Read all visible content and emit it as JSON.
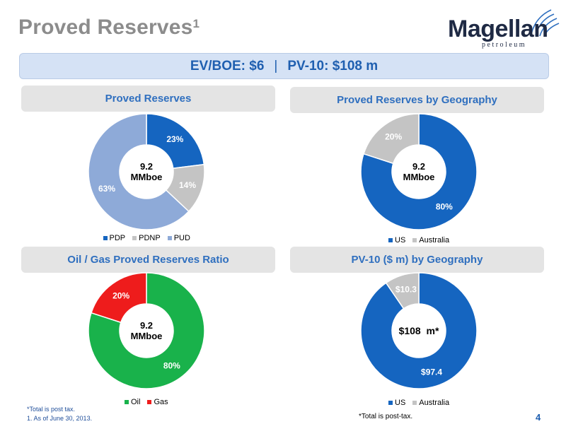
{
  "header": {
    "title": "Proved Reserves",
    "title_sup": "1"
  },
  "logo": {
    "word": "Magellan",
    "sub": "petroleum"
  },
  "banner": {
    "left": "EV/BOE: $6",
    "separator": "|",
    "right": "PV-10: $108 m"
  },
  "panels": {
    "p1": "Proved Reserves",
    "p2": "Proved Reserves by Geography",
    "p3": "Oil / Gas Proved Reserves Ratio",
    "p4": "PV-10 ($ m) by Geography"
  },
  "chart_data": [
    {
      "type": "pie",
      "title": "Proved Reserves",
      "center_label": [
        "9.2",
        "MMboe"
      ],
      "categories": [
        "PDP",
        "PDNP",
        "PUD"
      ],
      "values": [
        23,
        14,
        63
      ],
      "labels": [
        "23%",
        "14%",
        "63%"
      ],
      "colors": [
        "#1565c0",
        "#c4c4c4",
        "#8eaad8"
      ],
      "legend": "bottom"
    },
    {
      "type": "pie",
      "title": "Proved Reserves by Geography",
      "center_label": [
        "9.2",
        "MMboe"
      ],
      "categories": [
        "US",
        "Australia"
      ],
      "values": [
        80,
        20
      ],
      "labels": [
        "80%",
        "20%"
      ],
      "colors": [
        "#1565c0",
        "#c4c4c4"
      ],
      "legend": "bottom"
    },
    {
      "type": "pie",
      "title": "Oil / Gas Proved Reserves Ratio",
      "center_label": [
        "9.2",
        "MMboe"
      ],
      "categories": [
        "Oil",
        "Gas"
      ],
      "values": [
        80,
        20
      ],
      "labels": [
        "80%",
        "20%"
      ],
      "colors": [
        "#19b24b",
        "#ee1c1c"
      ],
      "legend": "bottom"
    },
    {
      "type": "pie",
      "title": "PV-10 ($ m) by Geography",
      "center_label": [
        "$108  m*"
      ],
      "categories": [
        "US",
        "Australia"
      ],
      "values": [
        97.4,
        10.3
      ],
      "labels": [
        "$97.4",
        "$10.3"
      ],
      "colors": [
        "#1565c0",
        "#c4c4c4"
      ],
      "legend": "bottom"
    }
  ],
  "footnotes": {
    "note": "*Total is post tax.",
    "asof": "1.   As of June 30, 2013.",
    "center": "*Total is post-tax.",
    "page": "4"
  }
}
